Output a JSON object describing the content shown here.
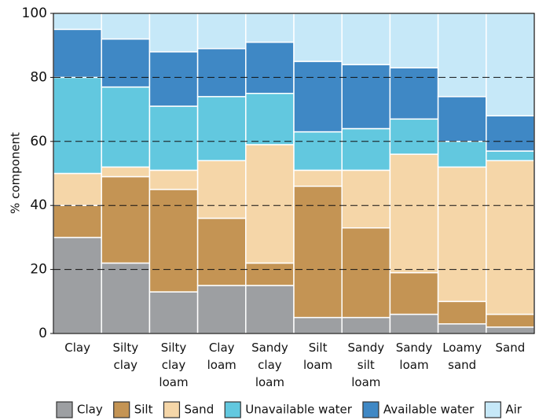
{
  "chart_data": {
    "type": "stacked-bar",
    "y_label": "% component",
    "categories": [
      "Clay",
      "Silty clay",
      "Silty clay loam",
      "Clay loam",
      "Sandy clay loam",
      "Silt loam",
      "Sandy silt loam",
      "Sandy loam",
      "Loamy sand",
      "Sand"
    ],
    "series": [
      {
        "name": "Clay",
        "color": "#9d9fa2",
        "values": [
          30,
          22,
          13,
          15,
          15,
          5,
          5,
          6,
          3,
          2
        ]
      },
      {
        "name": "Silt",
        "color": "#c49454",
        "values": [
          10,
          27,
          32,
          21,
          7,
          41,
          28,
          13,
          7,
          4
        ]
      },
      {
        "name": "Sand",
        "color": "#f5d6a8",
        "values": [
          10,
          3,
          6,
          18,
          37,
          5,
          18,
          37,
          42,
          48
        ]
      },
      {
        "name": "Unavailable water",
        "color": "#62c8df",
        "values": [
          30,
          25,
          20,
          20,
          16,
          12,
          13,
          11,
          8,
          3
        ]
      },
      {
        "name": "Available water",
        "color": "#3f88c5",
        "values": [
          15,
          15,
          17,
          15,
          16,
          22,
          20,
          16,
          14,
          11
        ]
      },
      {
        "name": "Air",
        "color": "#c6e8f8",
        "values": [
          5,
          8,
          12,
          11,
          9,
          15,
          16,
          17,
          26,
          32
        ]
      }
    ],
    "ylim": [
      0,
      100
    ],
    "yticks": [
      0,
      20,
      40,
      60,
      80,
      100
    ],
    "grid": true,
    "legend": "bottom"
  }
}
